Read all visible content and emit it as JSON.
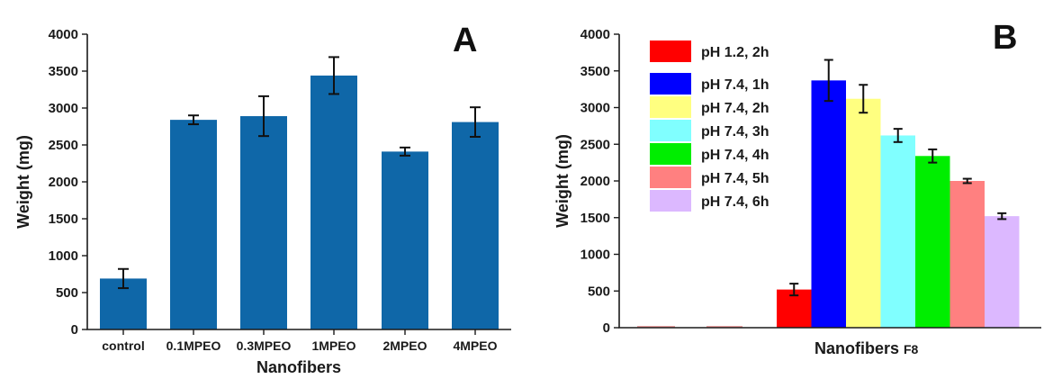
{
  "chart_data": [
    {
      "type": "bar",
      "panel": "A",
      "title": "",
      "xlabel": "Nanofibers",
      "ylabel": "Weight (mg)",
      "ylim": [
        0,
        4000
      ],
      "yticks": [
        "0",
        "500",
        "1000",
        "1500",
        "2000",
        "2500",
        "3000",
        "3500",
        "4000"
      ],
      "categories": [
        "control",
        "0.1MPEO",
        "0.3MPEO",
        "1MPEO",
        "2MPEO",
        "4MPEO"
      ],
      "values": [
        690,
        2840,
        2890,
        3440,
        2410,
        2810
      ],
      "errors": [
        130,
        60,
        270,
        250,
        55,
        200
      ],
      "color": "#0f67a8"
    },
    {
      "type": "bar",
      "panel": "B",
      "title": "",
      "xlabel": "Nanofibers",
      "xlabel_suffix": "F8",
      "ylabel": "Weight (mg)",
      "ylim": [
        0,
        4000
      ],
      "yticks": [
        "0",
        "500",
        "1000",
        "1500",
        "2000",
        "2500",
        "3000",
        "3500",
        "4000"
      ],
      "legend_position": "top-left",
      "series": [
        {
          "name": "pH 1.2, 2h",
          "value": 520,
          "error": 80,
          "color": "#ff0000"
        },
        {
          "name": "pH 7.4, 1h",
          "value": 3370,
          "error": 280,
          "color": "#0000ff"
        },
        {
          "name": "pH 7.4, 2h",
          "value": 3120,
          "error": 190,
          "color": "#ffff80"
        },
        {
          "name": "pH 7.4, 3h",
          "value": 2620,
          "error": 90,
          "color": "#80ffff"
        },
        {
          "name": "pH 7.4, 4h",
          "value": 2340,
          "error": 90,
          "color": "#00ee00"
        },
        {
          "name": "pH 7.4, 5h",
          "value": 2000,
          "error": 30,
          "color": "#ff8080"
        },
        {
          "name": "pH 7.4, 6h",
          "value": 1520,
          "error": 40,
          "color": "#dcb8ff"
        }
      ]
    }
  ]
}
